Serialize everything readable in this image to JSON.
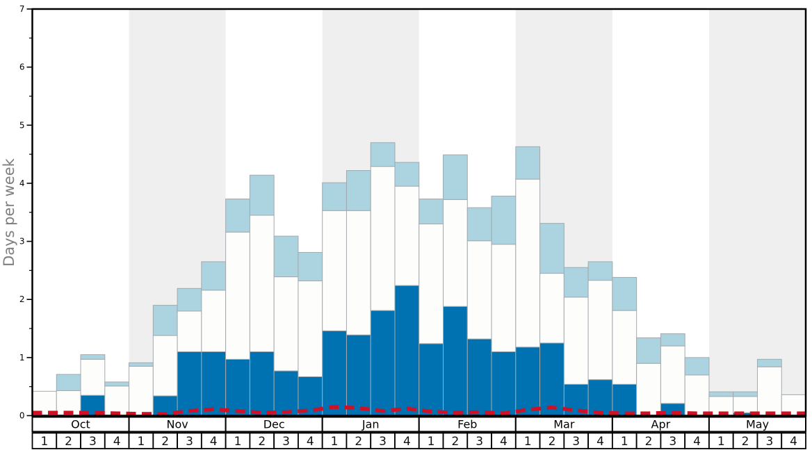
{
  "chart_data": {
    "type": "bar",
    "stacked": true,
    "title": "",
    "ylabel": "Days per week",
    "ylim": [
      0,
      7
    ],
    "y_tick_labels": [
      "0",
      "1",
      "2",
      "3",
      "4",
      "5",
      "6",
      "7"
    ],
    "y_minor_tick_step": 0.5,
    "grid": false,
    "legend": "none",
    "months": [
      "Oct",
      "Nov",
      "Dec",
      "Jan",
      "Feb",
      "Mar",
      "Apr",
      "May"
    ],
    "week_labels": [
      "1",
      "2",
      "3",
      "4"
    ],
    "shaded_months": [
      "Nov",
      "Jan",
      "Mar",
      "May"
    ],
    "categories": [
      "Oct 1",
      "Oct 2",
      "Oct 3",
      "Oct 4",
      "Nov 1",
      "Nov 2",
      "Nov 3",
      "Nov 4",
      "Dec 1",
      "Dec 2",
      "Dec 3",
      "Dec 4",
      "Jan 1",
      "Jan 2",
      "Jan 3",
      "Jan 4",
      "Feb 1",
      "Feb 2",
      "Feb 3",
      "Feb 4",
      "Mar 1",
      "Mar 2",
      "Mar 3",
      "Mar 4",
      "Apr 1",
      "Apr 2",
      "Apr 3",
      "Apr 4",
      "May 1",
      "May 2",
      "May 3",
      "May 4"
    ],
    "series": [
      {
        "name": "dark-blue-bottom",
        "color": "#0072B2",
        "cumulative_top": [
          0,
          0,
          0.35,
          0,
          0,
          0.34,
          1.1,
          1.1,
          0.97,
          1.1,
          0.77,
          0.67,
          1.46,
          1.39,
          1.81,
          2.24,
          1.24,
          1.88,
          1.32,
          1.1,
          1.18,
          1.25,
          0.54,
          0.62,
          0.54,
          0,
          0.21,
          0,
          0,
          0.05,
          0,
          0
        ]
      },
      {
        "name": "white-middle",
        "color": "#FDFDFB",
        "cumulative_top": [
          0.42,
          0.43,
          0.97,
          0.51,
          0.85,
          1.38,
          1.8,
          2.16,
          3.16,
          3.45,
          2.39,
          2.32,
          3.53,
          3.53,
          4.29,
          3.95,
          3.3,
          3.72,
          3.01,
          2.95,
          4.07,
          2.45,
          2.04,
          2.33,
          1.81,
          0.9,
          1.2,
          0.7,
          0.33,
          0.33,
          0.84,
          0.36
        ]
      },
      {
        "name": "light-blue-top",
        "color": "#ABD3E0",
        "cumulative_top": [
          0.42,
          0.71,
          1.05,
          0.58,
          0.91,
          1.9,
          2.19,
          2.65,
          3.73,
          4.14,
          3.09,
          2.81,
          4.01,
          4.22,
          4.7,
          4.36,
          3.73,
          4.49,
          3.58,
          3.78,
          4.63,
          3.31,
          2.55,
          2.65,
          2.38,
          1.34,
          1.41,
          1.0,
          0.41,
          0.41,
          0.97,
          0.36
        ]
      }
    ],
    "red_dashed_line": {
      "name": "red-dashed-reference-line",
      "color": "#CE1126",
      "values": [
        0.05,
        0.05,
        0.05,
        0.04,
        0.03,
        0.03,
        0.08,
        0.11,
        0.08,
        0.05,
        0.06,
        0.09,
        0.15,
        0.13,
        0.08,
        0.12,
        0.07,
        0.05,
        0.06,
        0.04,
        0.1,
        0.14,
        0.09,
        0.05,
        0.04,
        0.04,
        0.05,
        0.04,
        0.04,
        0.04,
        0.04,
        0.04
      ]
    },
    "colors": {
      "month_band": "#EFEFEF",
      "background": "#FFFFFF",
      "bar_border": "#A3A9AD",
      "frame": "#000000",
      "row_border": "#000000",
      "row_fill": "#FFFFFF",
      "tick_label": "#000000",
      "axis_label": "#7F7F7F"
    }
  }
}
